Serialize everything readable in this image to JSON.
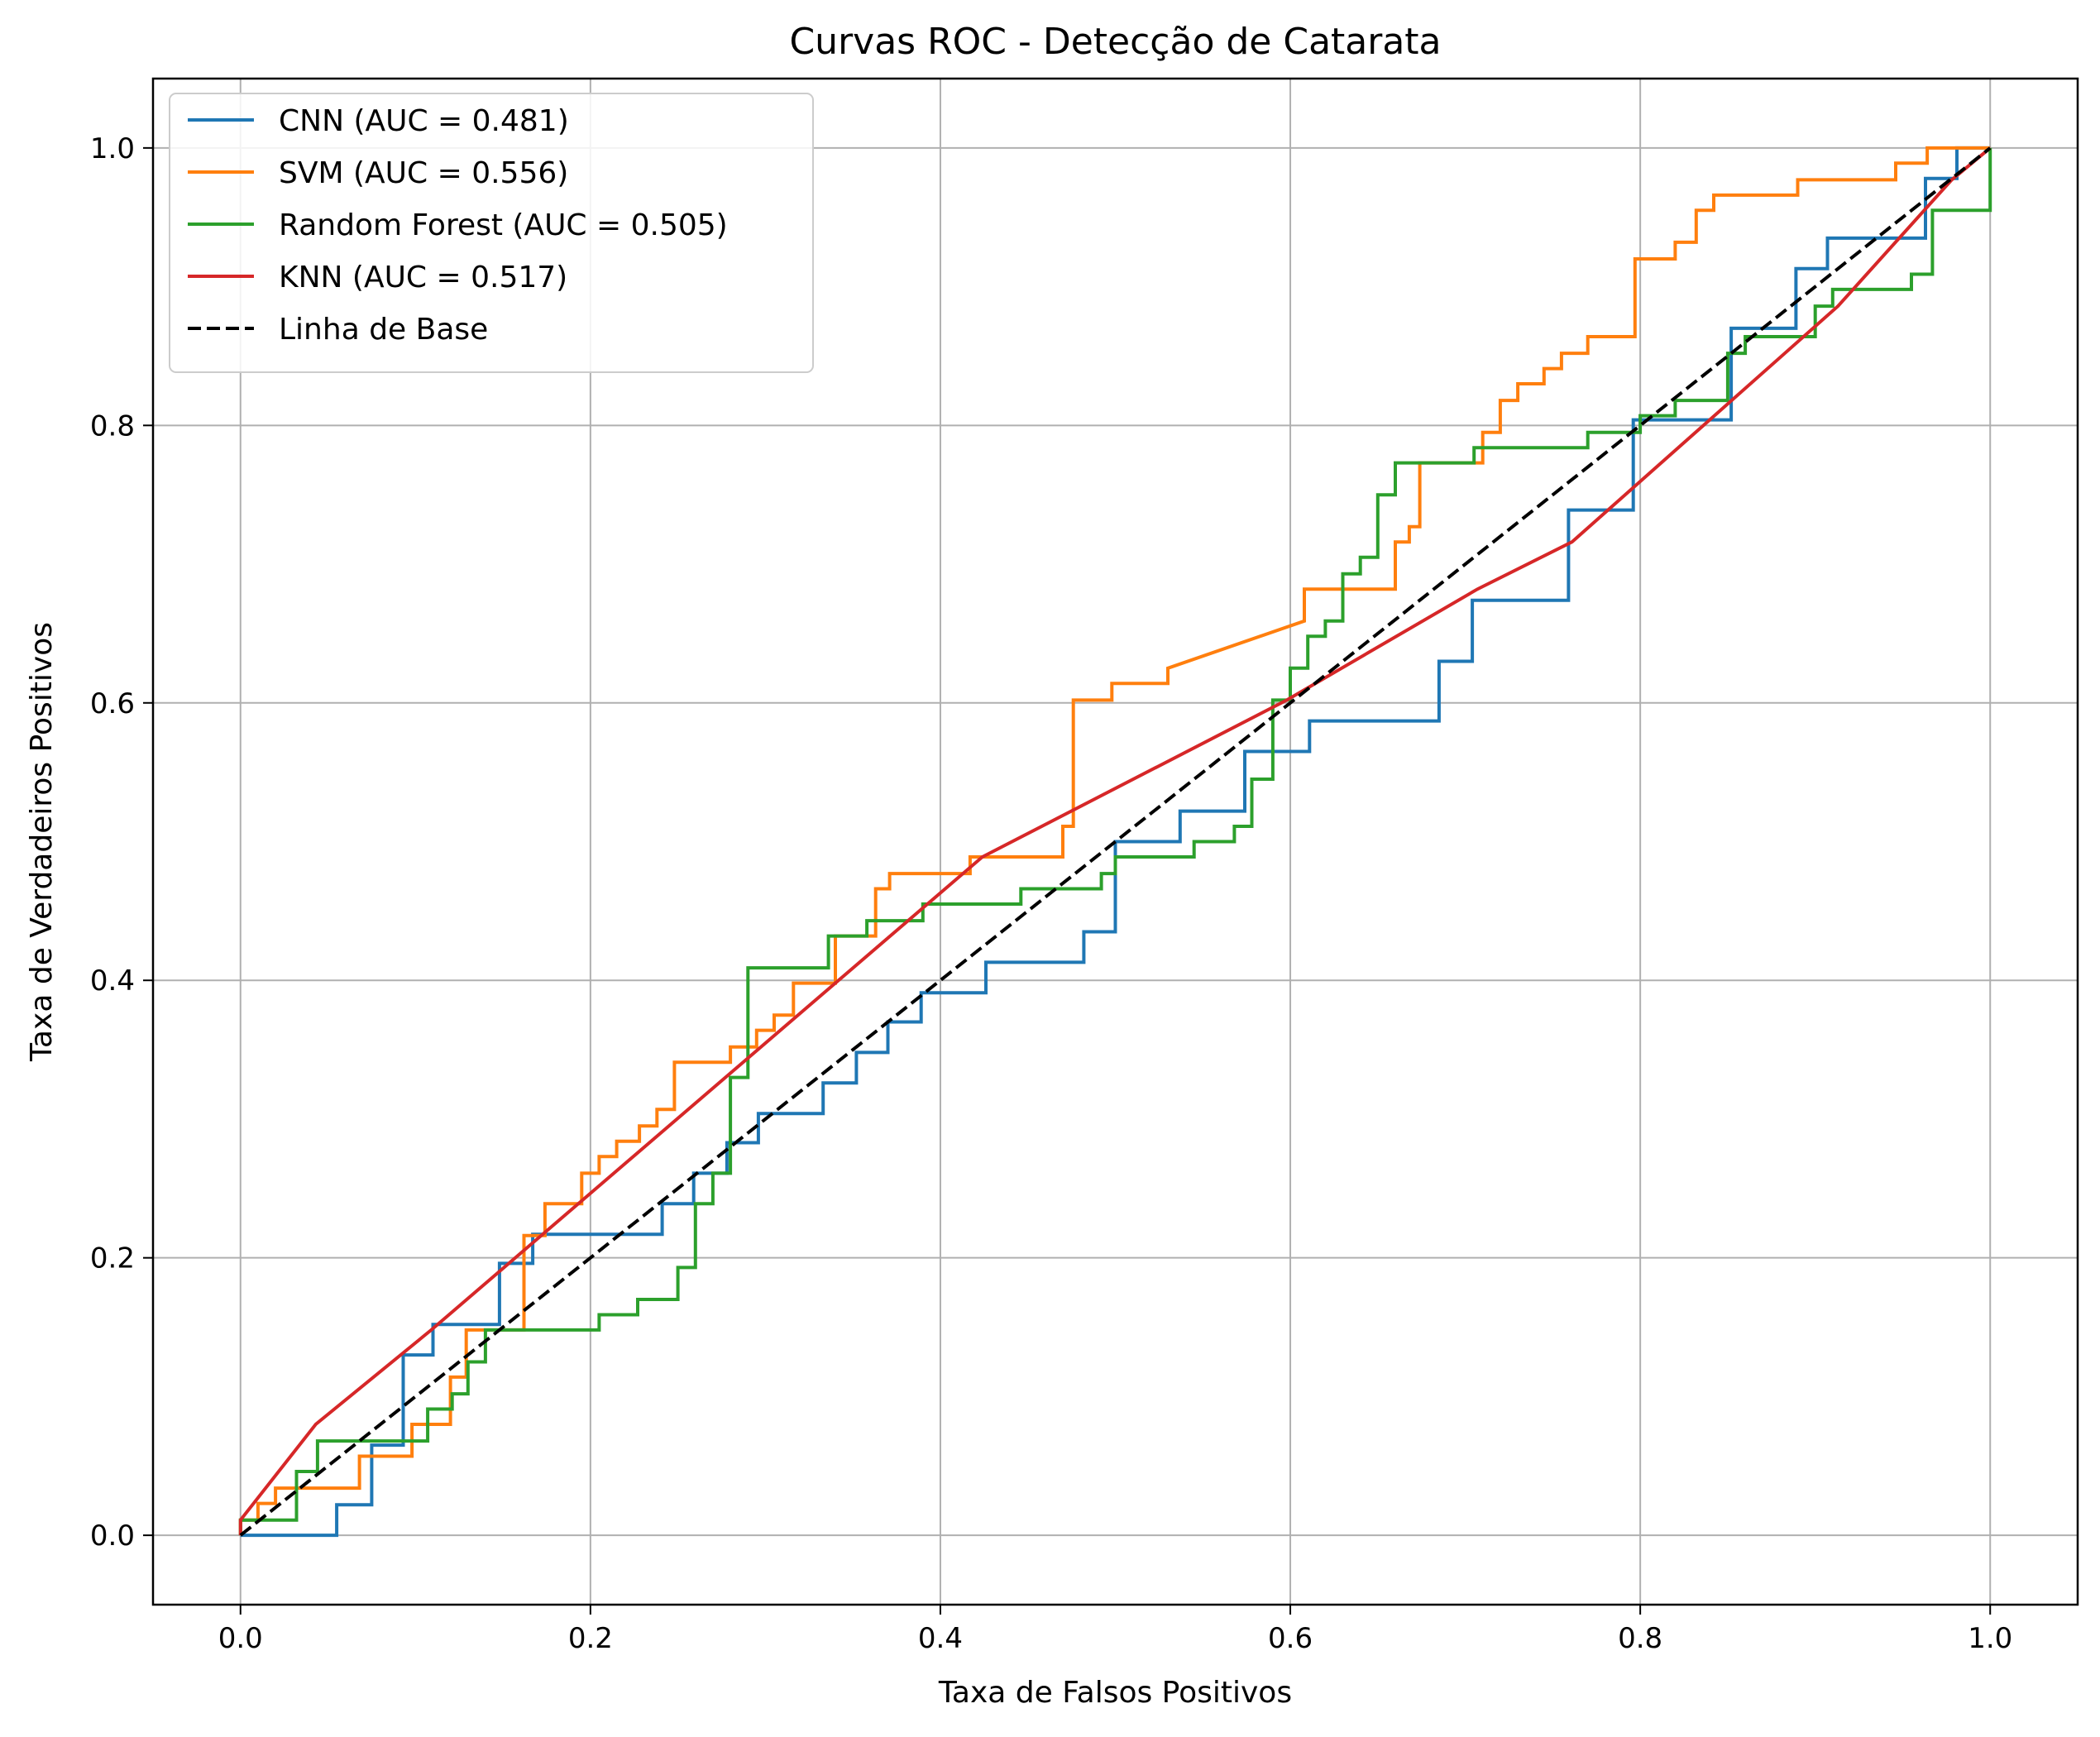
{
  "chart_data": {
    "type": "line",
    "title": "Curvas ROC - Detecção de Catarata",
    "xlabel": "Taxa de Falsos Positivos",
    "ylabel": "Taxa de Verdadeiros Positivos",
    "xlim": [
      -0.05,
      1.05
    ],
    "ylim": [
      -0.05,
      1.05
    ],
    "xticks": [
      "0.0",
      "0.2",
      "0.4",
      "0.6",
      "0.8",
      "1.0"
    ],
    "yticks": [
      "0.0",
      "0.2",
      "0.4",
      "0.6",
      "0.8",
      "1.0"
    ],
    "grid": true,
    "legend_position": "top-left",
    "series": [
      {
        "name": "CNN (AUC = 0.481)",
        "color": "#1f77b4",
        "dash": "solid",
        "step": true,
        "x": [
          0,
          0.055,
          0.055,
          0.075,
          0.075,
          0.093,
          0.093,
          0.11,
          0.11,
          0.148,
          0.148,
          0.167,
          0.167,
          0.241,
          0.241,
          0.259,
          0.259,
          0.278,
          0.278,
          0.296,
          0.296,
          0.333,
          0.333,
          0.352,
          0.352,
          0.37,
          0.37,
          0.389,
          0.389,
          0.426,
          0.426,
          0.482,
          0.482,
          0.5,
          0.5,
          0.537,
          0.537,
          0.574,
          0.574,
          0.611,
          0.611,
          0.685,
          0.685,
          0.704,
          0.704,
          0.759,
          0.759,
          0.796,
          0.796,
          0.852,
          0.852,
          0.889,
          0.889,
          0.907,
          0.907,
          0.963,
          0.963,
          0.981,
          0.981,
          1.0
        ],
        "y": [
          0,
          0,
          0.022,
          0.022,
          0.065,
          0.065,
          0.13,
          0.13,
          0.152,
          0.152,
          0.196,
          0.196,
          0.217,
          0.217,
          0.239,
          0.239,
          0.261,
          0.261,
          0.283,
          0.283,
          0.304,
          0.304,
          0.326,
          0.326,
          0.348,
          0.348,
          0.37,
          0.37,
          0.391,
          0.391,
          0.413,
          0.413,
          0.435,
          0.435,
          0.5,
          0.5,
          0.522,
          0.522,
          0.565,
          0.565,
          0.587,
          0.587,
          0.63,
          0.63,
          0.674,
          0.674,
          0.739,
          0.739,
          0.804,
          0.804,
          0.87,
          0.87,
          0.913,
          0.913,
          0.935,
          0.935,
          0.978,
          0.978,
          1.0,
          1.0
        ]
      },
      {
        "name": "SVM (AUC = 0.556)",
        "color": "#ff7f0e",
        "dash": "solid",
        "step": true,
        "x": [
          0,
          0,
          0.01,
          0.01,
          0.02,
          0.02,
          0.03,
          0.03,
          0.068,
          0.068,
          0.098,
          0.098,
          0.12,
          0.12,
          0.129,
          0.129,
          0.162,
          0.162,
          0.174,
          0.174,
          0.195,
          0.195,
          0.205,
          0.205,
          0.215,
          0.215,
          0.228,
          0.228,
          0.238,
          0.238,
          0.248,
          0.248,
          0.28,
          0.28,
          0.295,
          0.295,
          0.305,
          0.305,
          0.316,
          0.316,
          0.34,
          0.34,
          0.363,
          0.363,
          0.371,
          0.371,
          0.38,
          0.38,
          0.417,
          0.417,
          0.47,
          0.47,
          0.476,
          0.476,
          0.498,
          0.498,
          0.53,
          0.53,
          0.608,
          0.608,
          0.63,
          0.63,
          0.66,
          0.66,
          0.668,
          0.668,
          0.674,
          0.674,
          0.71,
          0.71,
          0.72,
          0.72,
          0.73,
          0.73,
          0.745,
          0.745,
          0.755,
          0.755,
          0.77,
          0.77,
          0.78,
          0.78,
          0.797,
          0.797,
          0.82,
          0.82,
          0.832,
          0.832,
          0.842,
          0.842,
          0.858,
          0.858,
          0.89,
          0.89,
          0.946,
          0.946,
          0.964,
          0.964,
          1.0
        ],
        "y": [
          0,
          0.011,
          0.011,
          0.023,
          0.023,
          0.034,
          0.034,
          0.034,
          0.034,
          0.057,
          0.057,
          0.08,
          0.08,
          0.114,
          0.114,
          0.148,
          0.148,
          0.216,
          0.216,
          0.239,
          0.239,
          0.261,
          0.261,
          0.273,
          0.273,
          0.284,
          0.284,
          0.295,
          0.295,
          0.307,
          0.307,
          0.341,
          0.341,
          0.352,
          0.352,
          0.364,
          0.364,
          0.375,
          0.375,
          0.398,
          0.398,
          0.432,
          0.432,
          0.466,
          0.466,
          0.477,
          0.477,
          0.477,
          0.477,
          0.489,
          0.489,
          0.511,
          0.511,
          0.602,
          0.602,
          0.614,
          0.614,
          0.625,
          0.659,
          0.682,
          0.682,
          0.682,
          0.682,
          0.716,
          0.716,
          0.727,
          0.727,
          0.773,
          0.773,
          0.795,
          0.795,
          0.818,
          0.818,
          0.83,
          0.83,
          0.841,
          0.841,
          0.852,
          0.852,
          0.864,
          0.864,
          0.864,
          0.864,
          0.92,
          0.92,
          0.932,
          0.932,
          0.955,
          0.955,
          0.966,
          0.966,
          0.966,
          0.966,
          0.977,
          0.977,
          0.989,
          0.989,
          1.0,
          1.0
        ]
      },
      {
        "name": "Random Forest (AUC = 0.505)",
        "color": "#2ca02c",
        "dash": "solid",
        "step": true,
        "x": [
          0,
          0,
          0.032,
          0.032,
          0.044,
          0.044,
          0.107,
          0.107,
          0.121,
          0.121,
          0.13,
          0.13,
          0.14,
          0.14,
          0.15,
          0.15,
          0.205,
          0.205,
          0.227,
          0.227,
          0.25,
          0.25,
          0.26,
          0.26,
          0.27,
          0.27,
          0.28,
          0.28,
          0.29,
          0.29,
          0.336,
          0.336,
          0.358,
          0.358,
          0.39,
          0.39,
          0.446,
          0.446,
          0.492,
          0.492,
          0.5,
          0.5,
          0.545,
          0.545,
          0.568,
          0.568,
          0.578,
          0.578,
          0.59,
          0.59,
          0.6,
          0.6,
          0.61,
          0.61,
          0.62,
          0.62,
          0.63,
          0.63,
          0.64,
          0.64,
          0.65,
          0.65,
          0.66,
          0.66,
          0.705,
          0.705,
          0.77,
          0.77,
          0.8,
          0.8,
          0.82,
          0.82,
          0.85,
          0.85,
          0.86,
          0.86,
          0.87,
          0.87,
          0.9,
          0.9,
          0.91,
          0.91,
          0.955,
          0.955,
          0.967,
          0.967,
          1.0,
          1.0
        ],
        "y": [
          0,
          0.011,
          0.011,
          0.046,
          0.046,
          0.068,
          0.068,
          0.091,
          0.091,
          0.102,
          0.102,
          0.125,
          0.125,
          0.148,
          0.148,
          0.148,
          0.148,
          0.159,
          0.159,
          0.17,
          0.17,
          0.193,
          0.193,
          0.239,
          0.239,
          0.261,
          0.261,
          0.33,
          0.33,
          0.409,
          0.409,
          0.432,
          0.432,
          0.443,
          0.443,
          0.455,
          0.455,
          0.466,
          0.466,
          0.477,
          0.477,
          0.489,
          0.489,
          0.5,
          0.5,
          0.511,
          0.511,
          0.545,
          0.545,
          0.602,
          0.602,
          0.625,
          0.625,
          0.648,
          0.648,
          0.659,
          0.659,
          0.693,
          0.693,
          0.705,
          0.705,
          0.75,
          0.75,
          0.773,
          0.773,
          0.784,
          0.784,
          0.795,
          0.795,
          0.807,
          0.807,
          0.818,
          0.818,
          0.852,
          0.852,
          0.864,
          0.864,
          0.864,
          0.864,
          0.886,
          0.886,
          0.898,
          0.898,
          0.909,
          0.909,
          0.955,
          0.955,
          1.0
        ]
      },
      {
        "name": "KNN (AUC = 0.517)",
        "color": "#d62728",
        "dash": "solid",
        "step": false,
        "x": [
          0,
          0,
          0.043,
          0.109,
          0.424,
          0.598,
          0.707,
          0.761,
          0.913,
          0.978,
          1.0
        ],
        "y": [
          0,
          0.011,
          0.08,
          0.148,
          0.489,
          0.602,
          0.682,
          0.716,
          0.886,
          0.977,
          1.0
        ]
      },
      {
        "name": "Linha de Base",
        "color": "#000000",
        "dash": "dashed",
        "step": false,
        "x": [
          0,
          1
        ],
        "y": [
          0,
          1
        ]
      }
    ]
  }
}
